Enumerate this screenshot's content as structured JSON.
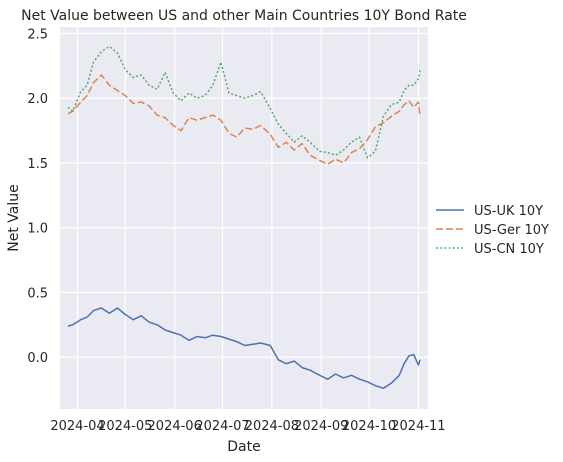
{
  "chart_data": {
    "type": "line",
    "title": "Net Value between US and other Main Countries 10Y Bond Rate",
    "xlabel": "Date",
    "ylabel": "Net Value",
    "x_range": [
      "2024-03-21",
      "2024-11-07"
    ],
    "ylim": [
      -0.4,
      2.55
    ],
    "x_ticks": [
      {
        "date": "2024-04-01",
        "label": "2024-04"
      },
      {
        "date": "2024-05-01",
        "label": "2024-05"
      },
      {
        "date": "2024-06-01",
        "label": "2024-06"
      },
      {
        "date": "2024-07-01",
        "label": "2024-07"
      },
      {
        "date": "2024-08-01",
        "label": "2024-08"
      },
      {
        "date": "2024-09-01",
        "label": "2024-09"
      },
      {
        "date": "2024-10-01",
        "label": "2024-10"
      },
      {
        "date": "2024-11-01",
        "label": "2024-11"
      }
    ],
    "y_ticks": [
      {
        "value": 0.0,
        "label": "0.0"
      },
      {
        "value": 0.5,
        "label": "0.5"
      },
      {
        "value": 1.0,
        "label": "1.0"
      },
      {
        "value": 1.5,
        "label": "1.5"
      },
      {
        "value": 2.0,
        "label": "2.0"
      },
      {
        "value": 2.5,
        "label": "2.5"
      }
    ],
    "grid": true,
    "legend_position": "right",
    "series": [
      {
        "name": "US-UK 10Y",
        "color": "#4c72b0",
        "dash": "solid",
        "x": [
          "2024-03-26",
          "2024-03-29",
          "2024-04-03",
          "2024-04-07",
          "2024-04-11",
          "2024-04-16",
          "2024-04-21",
          "2024-04-26",
          "2024-05-01",
          "2024-05-06",
          "2024-05-11",
          "2024-05-16",
          "2024-05-21",
          "2024-05-26",
          "2024-05-31",
          "2024-06-05",
          "2024-06-10",
          "2024-06-15",
          "2024-06-20",
          "2024-06-25",
          "2024-06-30",
          "2024-07-05",
          "2024-07-10",
          "2024-07-15",
          "2024-07-20",
          "2024-07-25",
          "2024-07-31",
          "2024-08-05",
          "2024-08-10",
          "2024-08-15",
          "2024-08-20",
          "2024-08-25",
          "2024-08-31",
          "2024-09-05",
          "2024-09-10",
          "2024-09-15",
          "2024-09-20",
          "2024-09-25",
          "2024-09-30",
          "2024-10-05",
          "2024-10-10",
          "2024-10-15",
          "2024-10-20",
          "2024-10-23",
          "2024-10-26",
          "2024-10-29",
          "2024-11-01",
          "2024-11-02"
        ],
        "y": [
          0.24,
          0.25,
          0.29,
          0.31,
          0.36,
          0.38,
          0.34,
          0.38,
          0.33,
          0.29,
          0.32,
          0.27,
          0.25,
          0.21,
          0.19,
          0.17,
          0.13,
          0.16,
          0.15,
          0.17,
          0.16,
          0.14,
          0.12,
          0.09,
          0.1,
          0.11,
          0.09,
          -0.02,
          -0.05,
          -0.03,
          -0.08,
          -0.1,
          -0.14,
          -0.17,
          -0.13,
          -0.16,
          -0.14,
          -0.17,
          -0.19,
          -0.22,
          -0.24,
          -0.2,
          -0.14,
          -0.05,
          0.01,
          0.02,
          -0.06,
          -0.02
        ]
      },
      {
        "name": "US-Ger 10Y",
        "color": "#dd8452",
        "dash": "dashed",
        "x": [
          "2024-03-26",
          "2024-03-29",
          "2024-04-03",
          "2024-04-07",
          "2024-04-11",
          "2024-04-16",
          "2024-04-21",
          "2024-04-26",
          "2024-05-01",
          "2024-05-06",
          "2024-05-11",
          "2024-05-16",
          "2024-05-21",
          "2024-05-26",
          "2024-05-31",
          "2024-06-05",
          "2024-06-10",
          "2024-06-15",
          "2024-06-20",
          "2024-06-25",
          "2024-06-30",
          "2024-07-05",
          "2024-07-10",
          "2024-07-15",
          "2024-07-20",
          "2024-07-25",
          "2024-07-31",
          "2024-08-05",
          "2024-08-10",
          "2024-08-15",
          "2024-08-20",
          "2024-08-25",
          "2024-08-31",
          "2024-09-05",
          "2024-09-10",
          "2024-09-15",
          "2024-09-20",
          "2024-09-25",
          "2024-09-30",
          "2024-10-05",
          "2024-10-10",
          "2024-10-15",
          "2024-10-20",
          "2024-10-23",
          "2024-10-26",
          "2024-10-29",
          "2024-11-01",
          "2024-11-02"
        ],
        "y": [
          1.88,
          1.9,
          1.97,
          2.02,
          2.12,
          2.18,
          2.1,
          2.06,
          2.02,
          1.96,
          1.97,
          1.94,
          1.87,
          1.85,
          1.79,
          1.75,
          1.85,
          1.83,
          1.85,
          1.87,
          1.83,
          1.73,
          1.7,
          1.77,
          1.76,
          1.79,
          1.72,
          1.62,
          1.66,
          1.6,
          1.65,
          1.56,
          1.52,
          1.49,
          1.53,
          1.5,
          1.58,
          1.61,
          1.68,
          1.78,
          1.81,
          1.86,
          1.9,
          1.95,
          1.98,
          1.93,
          1.97,
          1.86
        ]
      },
      {
        "name": "US-CN 10Y",
        "color": "#55a868",
        "dash": "dotted",
        "x": [
          "2024-03-26",
          "2024-03-29",
          "2024-04-03",
          "2024-04-07",
          "2024-04-11",
          "2024-04-16",
          "2024-04-21",
          "2024-04-26",
          "2024-05-01",
          "2024-05-06",
          "2024-05-11",
          "2024-05-16",
          "2024-05-21",
          "2024-05-26",
          "2024-05-31",
          "2024-06-05",
          "2024-06-10",
          "2024-06-15",
          "2024-06-20",
          "2024-06-25",
          "2024-06-30",
          "2024-07-05",
          "2024-07-10",
          "2024-07-15",
          "2024-07-20",
          "2024-07-25",
          "2024-07-31",
          "2024-08-05",
          "2024-08-10",
          "2024-08-15",
          "2024-08-20",
          "2024-08-25",
          "2024-08-31",
          "2024-09-05",
          "2024-09-10",
          "2024-09-15",
          "2024-09-20",
          "2024-09-25",
          "2024-09-30",
          "2024-10-05",
          "2024-10-10",
          "2024-10-15",
          "2024-10-20",
          "2024-10-23",
          "2024-10-26",
          "2024-10-29",
          "2024-11-01",
          "2024-11-02"
        ],
        "y": [
          1.93,
          1.9,
          2.05,
          2.1,
          2.28,
          2.36,
          2.4,
          2.35,
          2.22,
          2.16,
          2.18,
          2.1,
          2.07,
          2.2,
          2.04,
          1.98,
          2.04,
          2.0,
          2.02,
          2.1,
          2.28,
          2.04,
          2.02,
          2.0,
          2.02,
          2.05,
          1.92,
          1.8,
          1.73,
          1.66,
          1.71,
          1.66,
          1.59,
          1.58,
          1.56,
          1.6,
          1.66,
          1.7,
          1.54,
          1.59,
          1.86,
          1.95,
          1.97,
          2.06,
          2.1,
          2.1,
          2.15,
          2.22
        ]
      }
    ]
  }
}
